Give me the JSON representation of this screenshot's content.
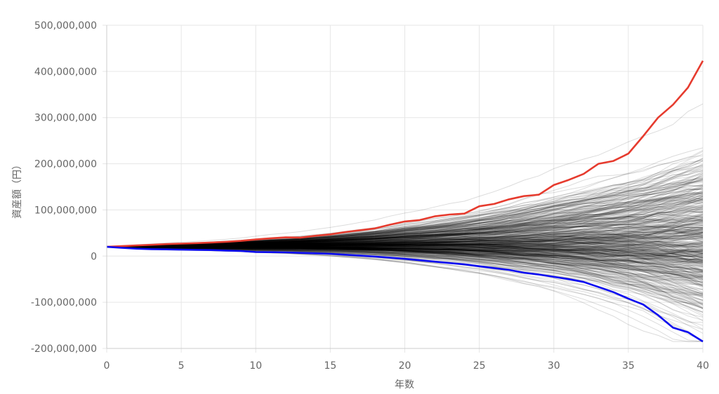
{
  "chart_data": {
    "type": "line",
    "title": "",
    "xlabel": "年数",
    "ylabel": "資産額（円）",
    "xlim": [
      0,
      40
    ],
    "ylim": [
      -200000000,
      500000000
    ],
    "x_ticks": [
      0,
      5,
      10,
      15,
      20,
      25,
      30,
      35,
      40
    ],
    "x_tick_labels": [
      "0",
      "5",
      "10",
      "15",
      "20",
      "25",
      "30",
      "35",
      "40"
    ],
    "y_ticks": [
      -200000000,
      -100000000,
      0,
      100000000,
      200000000,
      300000000,
      400000000,
      500000000
    ],
    "y_tick_labels": [
      "-200,000,000",
      "-100,000,000",
      "0",
      "100,000,000",
      "200,000,000",
      "300,000,000",
      "400,000,000",
      "500,000,000"
    ],
    "grid": true,
    "legend": "none",
    "x": [
      0,
      1,
      2,
      3,
      4,
      5,
      6,
      7,
      8,
      9,
      10,
      11,
      12,
      13,
      14,
      15,
      16,
      17,
      18,
      19,
      20,
      21,
      22,
      23,
      24,
      25,
      26,
      27,
      28,
      29,
      30,
      31,
      32,
      33,
      34,
      35,
      36,
      37,
      38,
      39,
      40
    ],
    "series": [
      {
        "color": "#e63b2e",
        "values": [
          20000000,
          21500000,
          23000000,
          24500000,
          26000000,
          27000000,
          28000000,
          29500000,
          31000000,
          33000000,
          36000000,
          38500000,
          40500000,
          40000000,
          44000000,
          47000000,
          52000000,
          56000000,
          60000000,
          68000000,
          75000000,
          78000000,
          86000000,
          90000000,
          92000000,
          108000000,
          113000000,
          123000000,
          130000000,
          133000000,
          154000000,
          165000000,
          178000000,
          200000000,
          206000000,
          222000000,
          260000000,
          300000000,
          328000000,
          365000000,
          423000000
        ]
      },
      {
        "color": "#0a0af0",
        "values": [
          20000000,
          18000000,
          16000000,
          15000000,
          14500000,
          14000000,
          13500000,
          13000000,
          12000000,
          11000000,
          9000000,
          8500000,
          8000000,
          7000000,
          6000000,
          5000000,
          3000000,
          1000000,
          -1000000,
          -3500000,
          -6000000,
          -9000000,
          -12000000,
          -15000000,
          -18000000,
          -22000000,
          -26000000,
          -30000000,
          -36000000,
          -40000000,
          -45000000,
          -50000000,
          -56000000,
          -67000000,
          -78000000,
          -92000000,
          -105000000,
          -128000000,
          -155000000,
          -165000000,
          -185000000
        ]
      }
    ],
    "simulation_paths": {
      "count": 500,
      "color": "#000000",
      "start_value": 20000000,
      "band_percentiles": {
        "p5": [
          20000000,
          18500000,
          17500000,
          17000000,
          16500000,
          16000000,
          15500000,
          15000000,
          14500000,
          14000000,
          13000000,
          12500000,
          12000000,
          11000000,
          10000000,
          9000000,
          7500000,
          6000000,
          4500000,
          2500000,
          500000,
          -2000000,
          -4500000,
          -7000000,
          -10000000,
          -13000000,
          -16000000,
          -20000000,
          -24000000,
          -28000000,
          -32000000,
          -37000000,
          -42000000,
          -48000000,
          -55000000,
          -62000000,
          -70000000,
          -80000000,
          -90000000,
          -100000000,
          -110000000
        ],
        "p50": [
          20000000,
          20300000,
          20600000,
          20900000,
          21200000,
          21500000,
          21800000,
          22100000,
          22400000,
          22700000,
          23000000,
          23300000,
          23600000,
          23900000,
          24200000,
          24500000,
          24800000,
          25100000,
          25400000,
          25700000,
          26000000,
          26300000,
          26600000,
          26900000,
          27200000,
          27500000,
          27800000,
          28100000,
          28400000,
          28700000,
          29000000,
          29300000,
          29600000,
          29900000,
          30200000,
          30500000,
          30800000,
          31100000,
          31400000,
          31700000,
          32000000
        ],
        "p95": [
          20000000,
          21200000,
          22500000,
          23800000,
          25000000,
          26000000,
          27000000,
          28200000,
          29500000,
          31000000,
          33000000,
          35000000,
          36500000,
          38000000,
          40500000,
          43000000,
          46000000,
          49000000,
          52000000,
          56000000,
          60000000,
          63000000,
          67000000,
          71000000,
          75000000,
          80000000,
          85000000,
          90000000,
          96000000,
          102000000,
          108000000,
          114000000,
          120000000,
          126000000,
          132000000,
          138000000,
          144000000,
          152000000,
          160000000,
          168000000,
          176000000
        ]
      }
    }
  }
}
